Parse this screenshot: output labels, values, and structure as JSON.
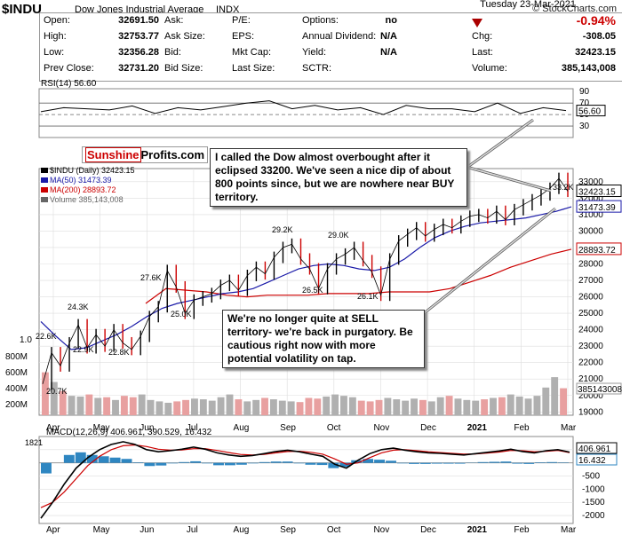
{
  "header": {
    "symbol": "$INDU",
    "name": "Dow Jones Industrial Average",
    "exchange": "INDX",
    "copyright": "© StockCharts.com",
    "date": "Tuesday  23-Mar-2021"
  },
  "quote": {
    "open_label": "Open:",
    "open": "32691.50",
    "high_label": "High:",
    "high": "32753.77",
    "low_label": "Low:",
    "low": "32356.28",
    "prev_label": "Prev Close:",
    "prev": "32731.20",
    "ask_label": "Ask:",
    "asksize_label": "Ask Size:",
    "bid_label": "Bid:",
    "bidsize_label": "Bid Size:",
    "pe_label": "P/E:",
    "eps_label": "EPS:",
    "mktcap_label": "Mkt Cap:",
    "lastsize_label": "Last Size:",
    "options_label": "Options:",
    "options": "no",
    "div_label": "Annual Dividend:",
    "div": "N/A",
    "yield_label": "Yield:",
    "yield": "N/A",
    "sctr_label": "SCTR:",
    "pct_change": "-0.94%",
    "chg_label": "Chg:",
    "chg": "-308.05",
    "last_label": "Last:",
    "last": "32423.15",
    "volume_label": "Volume:",
    "volume": "385,143,008"
  },
  "colors": {
    "price_up": "#000000",
    "price_down": "#cc0000",
    "ma50": "#1a1aa8",
    "ma200": "#cc0000",
    "volume_up": "#b0b0b0",
    "volume_down": "#e8a0a0",
    "macd_hist": "#2e86c1"
  },
  "chart_data": [
    {
      "type": "line",
      "panel": "rsi",
      "title": "RSI(14) 56.60",
      "ylim": [
        10,
        95
      ],
      "ticks": [
        70,
        50,
        30
      ],
      "axis_labels": [
        "90",
        "70",
        "50",
        "30"
      ],
      "last_label": "56.60",
      "x": [
        "Apr",
        "Apr",
        "May",
        "May",
        "Jun",
        "Jun",
        "Jul",
        "Jul",
        "Aug",
        "Aug",
        "Sep",
        "Sep",
        "Oct",
        "Oct",
        "Nov",
        "Nov",
        "Dec",
        "Dec",
        "Jan",
        "Jan",
        "Feb",
        "Feb",
        "Mar",
        "Mar"
      ],
      "values": [
        55,
        62,
        60,
        58,
        65,
        52,
        62,
        58,
        64,
        70,
        74,
        60,
        66,
        58,
        62,
        50,
        66,
        60,
        60,
        55,
        70,
        52,
        62,
        57
      ]
    },
    {
      "type": "line",
      "panel": "price",
      "legend": [
        "$INDU (Daily) 32423.15",
        "MA(50) 31473.39",
        "MA(200) 28893.72",
        "Volume 385,143,008"
      ],
      "xlabels": [
        "Apr",
        "May",
        "Jun",
        "Jul",
        "Aug",
        "Sep",
        "Oct",
        "Nov",
        "Dec",
        "2021",
        "Feb",
        "Mar"
      ],
      "ylim": [
        18800,
        33800
      ],
      "yticks": [
        33000,
        32000,
        31000,
        30000,
        29000,
        28000,
        27000,
        26000,
        25000,
        24000,
        23000,
        22000,
        21000,
        20000,
        19000
      ],
      "ytick_labels": [
        "33000",
        "32000",
        "31000",
        "30000",
        "29000",
        "28000",
        "27000",
        "26000",
        "25000",
        "24000",
        "23000",
        "22000",
        "21000",
        "20000",
        "19000"
      ],
      "right_tags": {
        "last": "32423.15",
        "ma50": "31473.39",
        "ma200": "28893.72",
        "volume": "385143008"
      },
      "annotations": [
        "20.7K",
        "22.6K",
        "24.3K",
        "22.9K",
        "22.8K",
        "27.6K",
        "25.0K",
        "29.2K",
        "26.5K",
        "29.0K",
        "26.1K",
        "33.2K"
      ],
      "close": [
        20700,
        22600,
        21800,
        23200,
        24300,
        22900,
        23700,
        23000,
        24000,
        23200,
        22800,
        23600,
        24800,
        25400,
        27600,
        26600,
        25000,
        25800,
        26000,
        26200,
        26700,
        27000,
        26400,
        27300,
        27800,
        27400,
        28400,
        29000,
        29200,
        28300,
        27700,
        26500,
        27700,
        28300,
        28600,
        29000,
        28200,
        27500,
        26100,
        28300,
        29400,
        29800,
        30200,
        29700,
        30100,
        30400,
        30200,
        30600,
        30900,
        31000,
        30800,
        31200,
        30700,
        31300,
        31600,
        31900,
        32200,
        32600,
        33200,
        32423
      ],
      "ma50": [
        24500,
        23600,
        22800,
        22900,
        23300,
        23700,
        24200,
        24800,
        25300,
        25600,
        25800,
        26000,
        26200,
        26300,
        26500,
        26900,
        27300,
        27700,
        27900,
        28000,
        27900,
        27700,
        27600,
        27800,
        28300,
        29000,
        29600,
        30000,
        30300,
        30500,
        30600,
        30700,
        30800,
        31000,
        31200,
        31473
      ],
      "ma200": [
        25600,
        26500,
        26400,
        26300,
        26100,
        26000,
        26100,
        26100,
        26100,
        26200,
        26200,
        26200,
        26300,
        26300,
        26300,
        26500,
        26900,
        27300,
        27800,
        28200,
        28600,
        28894
      ],
      "volume_label_ticks": [
        "800M",
        "600M",
        "400M",
        "200M"
      ],
      "volume_top_label": "1.0",
      "volume": [
        0.62,
        0.48,
        0.35,
        0.28,
        0.27,
        0.3,
        0.25,
        0.26,
        0.22,
        0.28,
        0.26,
        0.3,
        0.22,
        0.2,
        0.18,
        0.2,
        0.22,
        0.24,
        0.23,
        0.21,
        0.26,
        0.3,
        0.23,
        0.2,
        0.22,
        0.25,
        0.23,
        0.21,
        0.2,
        0.19,
        0.25,
        0.24,
        0.27,
        0.3,
        0.28,
        0.26,
        0.21,
        0.2,
        0.22,
        0.25,
        0.23,
        0.21,
        0.24,
        0.22,
        0.2,
        0.26,
        0.28,
        0.24,
        0.22,
        0.21,
        0.23,
        0.25,
        0.26,
        0.3,
        0.27,
        0.24,
        0.28,
        0.4,
        0.55,
        0.39
      ]
    },
    {
      "type": "line",
      "panel": "macd",
      "title": "MACD(12,26,9) 406.961, 390.529, 16.432",
      "ylim": [
        -2300,
        1000
      ],
      "ytick_labels": [
        "500",
        "-500",
        "-1000",
        "-1500",
        "-2000"
      ],
      "yticks": [
        500,
        -500,
        -1000,
        -1500,
        -2000
      ],
      "left_label": "1821",
      "right_tags": {
        "macd": "406.961",
        "signal": "390.529",
        "hist": "16.432"
      },
      "xlabels": [
        "Apr",
        "May",
        "Jun",
        "Jul",
        "Aug",
        "Sep",
        "Oct",
        "Nov",
        "Dec",
        "2021",
        "Feb",
        "Mar"
      ],
      "macd": [
        -2100,
        -1500,
        -800,
        -200,
        200,
        500,
        700,
        800,
        700,
        500,
        420,
        460,
        520,
        600,
        520,
        380,
        300,
        250,
        280,
        350,
        430,
        480,
        420,
        330,
        250,
        -50,
        -200,
        100,
        350,
        500,
        560,
        480,
        420,
        380,
        360,
        330,
        300,
        350,
        400,
        450,
        520,
        430,
        380,
        460,
        500,
        407
      ],
      "signal": [
        -1700,
        -1500,
        -1100,
        -600,
        -100,
        250,
        500,
        650,
        680,
        620,
        520,
        480,
        490,
        540,
        540,
        470,
        390,
        320,
        300,
        320,
        380,
        430,
        440,
        400,
        330,
        150,
        -50,
        0,
        200,
        380,
        480,
        500,
        460,
        420,
        390,
        360,
        330,
        340,
        370,
        410,
        470,
        460,
        420,
        440,
        470,
        391
      ]
    }
  ],
  "callouts": {
    "top": "I called the Dow almost overbought after it eclipsed 33200. We've seen a nice dip of about 800 points since, but we are nowhere near BUY territory.",
    "bottom": "We're no longer quite at SELL territory- we're back in purgatory. Be cautious right now with more potential volatility on tap."
  },
  "logo": {
    "part1": "Sunshine",
    "part2": "Profits.com"
  }
}
